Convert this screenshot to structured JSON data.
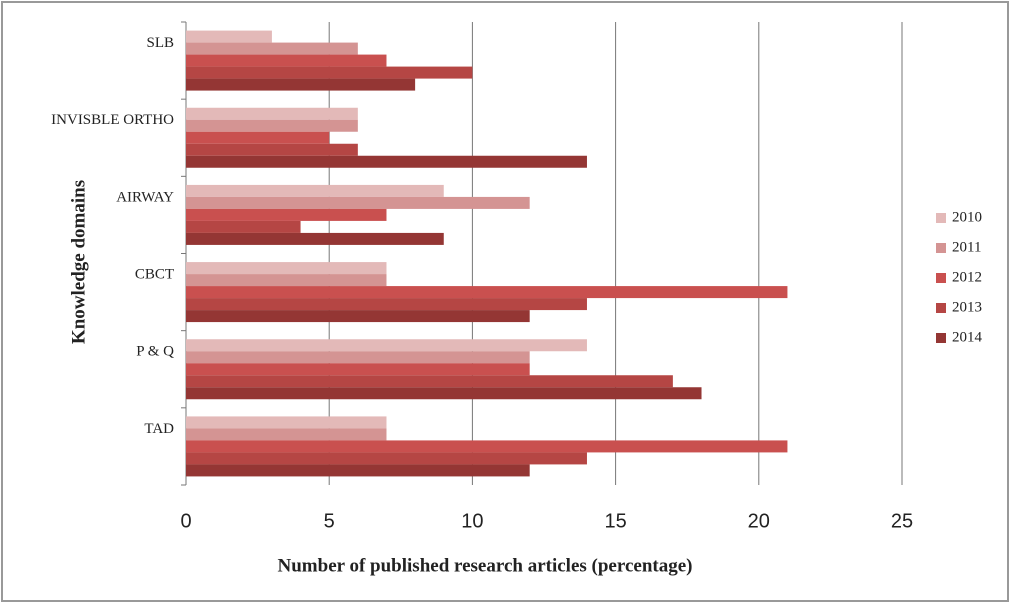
{
  "chart_data": {
    "type": "bar",
    "orientation": "horizontal",
    "xlabel": "Number of published research articles (percentage)",
    "ylabel": "Knowledge domains",
    "categories": [
      "SLB",
      "INVISBLE ORTHO",
      "AIRWAY",
      "CBCT",
      "P & Q",
      "TAD"
    ],
    "series": [
      {
        "name": "2010",
        "color": "#e3b9b8",
        "values": [
          3,
          6,
          9,
          7,
          14,
          7
        ]
      },
      {
        "name": "2011",
        "color": "#d49493",
        "values": [
          6,
          6,
          12,
          7,
          12,
          7
        ]
      },
      {
        "name": "2012",
        "color": "#c9504f",
        "values": [
          7,
          5,
          7,
          21,
          12,
          21
        ]
      },
      {
        "name": "2013",
        "color": "#b54644",
        "values": [
          10,
          6,
          4,
          14,
          17,
          14
        ]
      },
      {
        "name": "2014",
        "color": "#943634",
        "values": [
          8,
          14,
          9,
          12,
          18,
          12
        ]
      }
    ],
    "xlim": [
      0,
      25
    ],
    "xticks": [
      0,
      5,
      10,
      15,
      20,
      25
    ],
    "grid": true,
    "legend": "right"
  }
}
